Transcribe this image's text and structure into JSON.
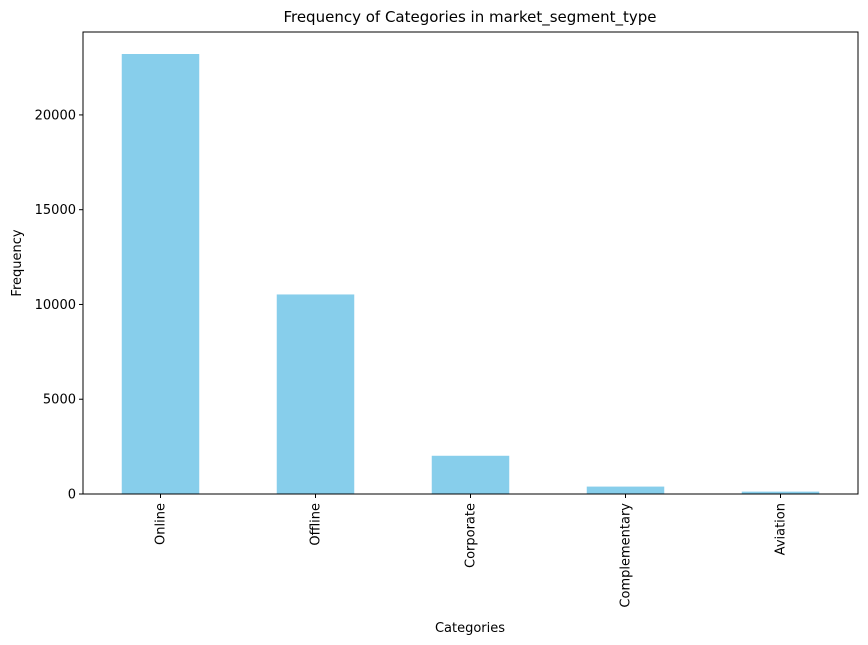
{
  "chart_data": {
    "type": "bar",
    "title": "Frequency of Categories in market_segment_type",
    "xlabel": "Categories",
    "ylabel": "Frequency",
    "categories": [
      "Online",
      "Offline",
      "Corporate",
      "Complementary",
      "Aviation"
    ],
    "values": [
      23214,
      10528,
      2017,
      391,
      125
    ],
    "ylim": [
      0,
      24375
    ],
    "yticks": [
      0,
      5000,
      10000,
      15000,
      20000
    ],
    "ytick_labels": [
      "0",
      "5000",
      "10000",
      "15000",
      "20000"
    ],
    "bar_color": "#87CEEB",
    "grid": false,
    "legend": "none"
  }
}
